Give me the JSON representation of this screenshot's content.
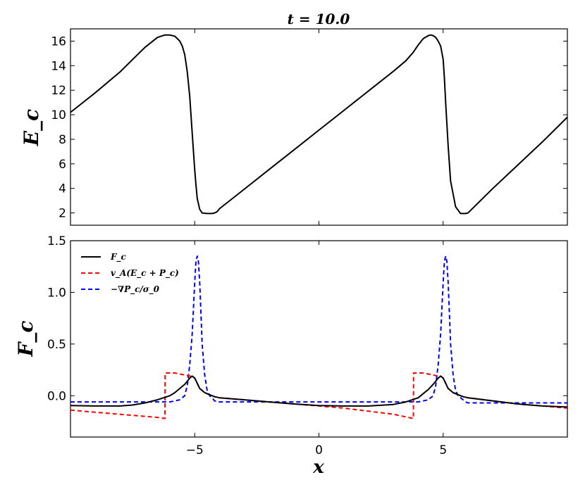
{
  "figure": {
    "title": "t = 10.0"
  },
  "chart_data": [
    {
      "type": "line",
      "panel": "top",
      "ylabel": "E_c",
      "xlabel": "",
      "xlim": [
        -10,
        10
      ],
      "ylim": [
        1,
        17
      ],
      "yticks": [
        2,
        4,
        6,
        8,
        10,
        12,
        14,
        16
      ],
      "grid": false,
      "series": [
        {
          "name": "",
          "color": "#000000",
          "style": "solid",
          "x": [
            -10,
            -9,
            -8,
            -7.5,
            -7,
            -6.5,
            -6.2,
            -6.0,
            -5.8,
            -5.6,
            -5.5,
            -5.4,
            -5.3,
            -5.2,
            -5.1,
            -5.0,
            -4.95,
            -4.9,
            -4.8,
            -4.7,
            -4.5,
            -4.3,
            -4.2,
            -4.1,
            -4.0,
            -3.0,
            -2.0,
            -1.0,
            0.0,
            1.0,
            2.0,
            3.0,
            3.5,
            3.8,
            4.0,
            4.2,
            4.4,
            4.5,
            4.6,
            4.7,
            4.8,
            4.9,
            5.0,
            5.05,
            5.1,
            5.2,
            5.3,
            5.5,
            5.7,
            5.8,
            5.9,
            6.0,
            7.0,
            8.0,
            9.0,
            10.0
          ],
          "y": [
            10.2,
            11.8,
            13.5,
            14.5,
            15.5,
            16.3,
            16.5,
            16.5,
            16.4,
            16.0,
            15.6,
            14.9,
            13.5,
            11.5,
            8.5,
            5.5,
            4.3,
            3.2,
            2.3,
            2.0,
            1.95,
            1.95,
            2.0,
            2.1,
            2.35,
            3.95,
            5.55,
            7.15,
            8.75,
            10.35,
            11.95,
            13.55,
            14.4,
            15.1,
            15.7,
            16.2,
            16.45,
            16.5,
            16.45,
            16.3,
            16.0,
            15.6,
            14.5,
            13.0,
            11.0,
            7.5,
            4.6,
            2.5,
            1.95,
            1.95,
            1.95,
            2.0,
            4.0,
            5.9,
            7.8,
            9.8
          ]
        }
      ]
    },
    {
      "type": "line",
      "panel": "bottom",
      "ylabel": "F_c",
      "xlabel": "x",
      "xlim": [
        -10,
        10
      ],
      "ylim": [
        -0.4,
        1.5
      ],
      "yticks": [
        0.0,
        0.5,
        1.0,
        1.5
      ],
      "ytick_labels": [
        "0.0",
        "0.5",
        "1.0",
        "1.5"
      ],
      "xticks": [
        -5,
        0,
        5
      ],
      "xtick_labels": [
        "−5",
        "0",
        "5"
      ],
      "grid": false,
      "legend_position": "top-left",
      "series": [
        {
          "name": "F_c",
          "color": "#000000",
          "style": "solid",
          "x": [
            -10,
            -9,
            -8,
            -7.5,
            -7,
            -6.5,
            -6,
            -5.8,
            -5.6,
            -5.4,
            -5.3,
            -5.2,
            -5.1,
            -5.0,
            -4.9,
            -4.8,
            -4.6,
            -4.4,
            -4.2,
            -4.0,
            -3,
            -2,
            -1,
            0,
            1,
            2,
            3,
            3.5,
            4,
            4.2,
            4.4,
            4.6,
            4.7,
            4.8,
            4.9,
            5.0,
            5.1,
            5.2,
            5.4,
            5.6,
            5.8,
            6,
            7,
            8,
            9,
            10
          ],
          "y": [
            -0.095,
            -0.1,
            -0.1,
            -0.09,
            -0.07,
            -0.04,
            0.0,
            0.03,
            0.07,
            0.11,
            0.14,
            0.17,
            0.19,
            0.17,
            0.12,
            0.07,
            0.03,
            0.01,
            -0.01,
            -0.02,
            -0.04,
            -0.06,
            -0.08,
            -0.095,
            -0.1,
            -0.1,
            -0.085,
            -0.06,
            -0.02,
            0.02,
            0.06,
            0.11,
            0.14,
            0.17,
            0.19,
            0.17,
            0.12,
            0.07,
            0.03,
            0.01,
            -0.01,
            -0.02,
            -0.05,
            -0.08,
            -0.1,
            -0.11
          ]
        },
        {
          "name": "v_A(E_c + P_c)",
          "color": "#ff0000",
          "style": "dashed",
          "x": [
            -10,
            -9,
            -8,
            -7,
            -6.5,
            -6.2,
            -6.19,
            -5.8,
            -5.4,
            -5.2,
            -5.1,
            -5.0,
            -4.9,
            -4.8,
            -4.6,
            -4.4,
            -4.2,
            -4.0,
            -3,
            -2,
            -1,
            0,
            1,
            2,
            3,
            3.8,
            3.81,
            4.2,
            4.6,
            4.8,
            4.9,
            5.0,
            5.1,
            5.2,
            5.4,
            5.6,
            5.8,
            6,
            7,
            8,
            9,
            10
          ],
          "y": [
            -0.14,
            -0.16,
            -0.18,
            -0.2,
            -0.21,
            -0.22,
            0.22,
            0.22,
            0.2,
            0.19,
            0.19,
            0.17,
            0.12,
            0.07,
            0.03,
            0.01,
            -0.01,
            -0.02,
            -0.04,
            -0.06,
            -0.08,
            -0.1,
            -0.12,
            -0.15,
            -0.18,
            -0.22,
            0.22,
            0.22,
            0.2,
            0.19,
            0.19,
            0.17,
            0.12,
            0.07,
            0.03,
            0.01,
            -0.01,
            -0.02,
            -0.05,
            -0.08,
            -0.1,
            -0.12
          ]
        },
        {
          "name": "−∇P_c/σ_0",
          "color": "#0000ff",
          "style": "dashed",
          "x": [
            -10,
            -7,
            -6,
            -5.6,
            -5.4,
            -5.3,
            -5.2,
            -5.1,
            -5.05,
            -5.0,
            -4.95,
            -4.9,
            -4.85,
            -4.8,
            -4.75,
            -4.7,
            -4.6,
            -4.5,
            -4.4,
            -4.3,
            -4.2,
            -4.0,
            -3.0,
            -2,
            -1,
            0,
            1,
            2,
            3,
            4,
            4.4,
            4.6,
            4.7,
            4.8,
            4.9,
            4.95,
            5.0,
            5.05,
            5.1,
            5.15,
            5.2,
            5.25,
            5.3,
            5.4,
            5.5,
            5.6,
            5.7,
            5.8,
            5.9,
            6.0,
            7,
            8,
            9,
            10
          ],
          "y": [
            -0.06,
            -0.06,
            -0.06,
            -0.04,
            0.0,
            0.1,
            0.3,
            0.6,
            0.85,
            1.1,
            1.3,
            1.35,
            1.3,
            1.1,
            0.8,
            0.5,
            0.2,
            0.05,
            0.0,
            -0.02,
            -0.05,
            -0.06,
            -0.06,
            -0.06,
            -0.06,
            -0.06,
            -0.06,
            -0.06,
            -0.06,
            -0.06,
            -0.04,
            0.0,
            0.1,
            0.3,
            0.6,
            0.85,
            1.1,
            1.3,
            1.35,
            1.3,
            1.1,
            0.8,
            0.5,
            0.2,
            0.05,
            0.0,
            -0.02,
            -0.04,
            -0.06,
            -0.07,
            -0.07,
            -0.07,
            -0.07,
            -0.07
          ]
        }
      ]
    }
  ]
}
